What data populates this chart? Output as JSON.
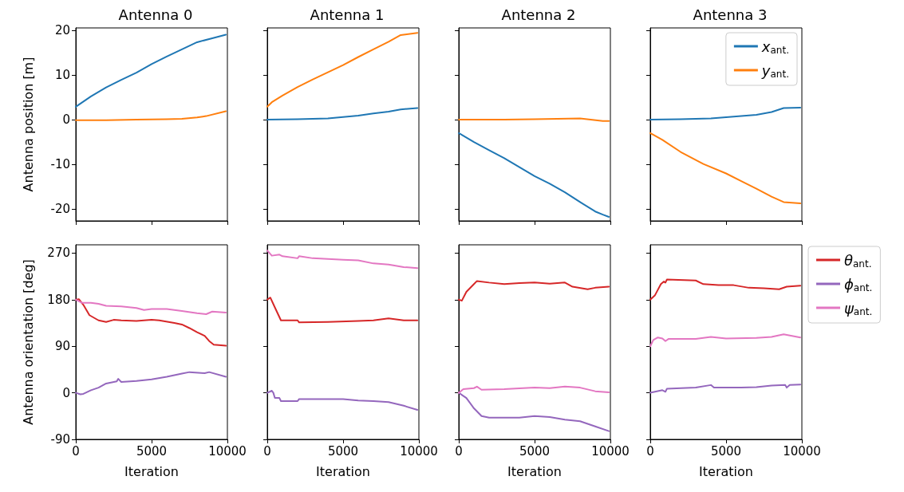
{
  "chart_data": [
    {
      "type": "line",
      "title": "Antenna 0",
      "ylabel": "Antenna position [m]",
      "xlim": [
        0,
        10000
      ],
      "xticks": [
        0,
        5000,
        10000
      ],
      "ylim": [
        -22.6,
        20.5
      ],
      "yticks": [
        -20,
        -10,
        0,
        10,
        20
      ],
      "tick_labels": "y",
      "series": [
        {
          "color": "#1f77b4",
          "x": [
            0,
            1000,
            2000,
            3000,
            4000,
            5000,
            6000,
            7000,
            8000,
            9000,
            9900
          ],
          "values": [
            2.9,
            5.2,
            7.2,
            8.9,
            10.5,
            12.4,
            14.1,
            15.7,
            17.3,
            18.2,
            19.0
          ]
        },
        {
          "color": "#ff7f0e",
          "x": [
            0,
            2000,
            4000,
            6000,
            7000,
            8000,
            8600,
            9900
          ],
          "values": [
            -0.1,
            -0.1,
            0,
            0.1,
            0.2,
            0.5,
            0.8,
            1.9
          ]
        }
      ]
    },
    {
      "type": "line",
      "title": "Antenna 1",
      "xlim": [
        0,
        10000
      ],
      "xticks": [
        0,
        5000,
        10000
      ],
      "ylim": [
        -22.6,
        20.5
      ],
      "yticks": [
        -20,
        -10,
        0,
        10,
        20
      ],
      "tick_labels": false,
      "series": [
        {
          "color": "#1f77b4",
          "x": [
            0,
            2000,
            4000,
            5000,
            6000,
            7000,
            8000,
            8800,
            9900
          ],
          "values": [
            0,
            0.1,
            0.3,
            0.6,
            0.9,
            1.4,
            1.8,
            2.3,
            2.6
          ]
        },
        {
          "color": "#ff7f0e",
          "x": [
            0,
            300,
            1000,
            2000,
            3000,
            4000,
            5000,
            6000,
            7000,
            8000,
            8800,
            9000,
            9900
          ],
          "values": [
            2.9,
            3.9,
            5.4,
            7.3,
            9.0,
            10.6,
            12.2,
            14.0,
            15.7,
            17.4,
            18.9,
            19.0,
            19.4
          ]
        }
      ]
    },
    {
      "type": "line",
      "title": "Antenna 2",
      "xlim": [
        0,
        10000
      ],
      "xticks": [
        0,
        5000,
        10000
      ],
      "ylim": [
        -22.6,
        20.5
      ],
      "yticks": [
        -20,
        -10,
        0,
        10,
        20
      ],
      "tick_labels": false,
      "series": [
        {
          "color": "#1f77b4",
          "x": [
            0,
            1000,
            2000,
            3000,
            4000,
            5000,
            6000,
            7000,
            8000,
            9000,
            9500,
            9900
          ],
          "values": [
            -3.0,
            -5.0,
            -6.8,
            -8.6,
            -10.6,
            -12.6,
            -14.3,
            -16.2,
            -18.4,
            -20.5,
            -21.2,
            -21.7
          ]
        },
        {
          "color": "#ff7f0e",
          "x": [
            0,
            3000,
            5000,
            8000,
            9500,
            9900
          ],
          "values": [
            0,
            0,
            0.1,
            0.3,
            -0.3,
            -0.3
          ]
        }
      ]
    },
    {
      "type": "line",
      "title": "Antenna 3",
      "xlim": [
        0,
        10000
      ],
      "xticks": [
        0,
        5000,
        10000
      ],
      "ylim": [
        -22.6,
        20.5
      ],
      "yticks": [
        -20,
        -10,
        0,
        10,
        20
      ],
      "tick_labels": false,
      "legend": "top right",
      "series": [
        {
          "name": "x$_{ant.}$",
          "color": "#1f77b4",
          "x": [
            0,
            2000,
            4000,
            6000,
            7000,
            8000,
            8800,
            9900
          ],
          "values": [
            0,
            0.1,
            0.3,
            0.8,
            1.1,
            1.7,
            2.6,
            2.7
          ]
        },
        {
          "name": "y$_{ant.}$",
          "color": "#ff7f0e",
          "x": [
            0,
            800,
            2000,
            3500,
            5000,
            6000,
            7000,
            8000,
            8800,
            9900
          ],
          "values": [
            -3.0,
            -4.5,
            -7.2,
            -9.9,
            -12.0,
            -13.7,
            -15.4,
            -17.2,
            -18.4,
            -18.7
          ]
        }
      ]
    },
    {
      "type": "line",
      "xlabel": "Iteration",
      "ylabel": "Antenna orientation [deg]",
      "xlim": [
        0,
        10000
      ],
      "xticks": [
        0,
        5000,
        10000
      ],
      "ylim": [
        -90,
        286
      ],
      "yticks": [
        -90,
        0,
        90,
        180,
        270
      ],
      "series": [
        {
          "color": "#d62728",
          "x": [
            0,
            200,
            500,
            900,
            1500,
            2000,
            2500,
            3000,
            4000,
            5000,
            5500,
            6500,
            7000,
            7500,
            8000,
            8500,
            8800,
            9100,
            9900
          ],
          "values": [
            180,
            181,
            170,
            150,
            140,
            137,
            141,
            140,
            139,
            141,
            140,
            135,
            132,
            125,
            117,
            110,
            100,
            93,
            91
          ]
        },
        {
          "color": "#9467bd",
          "x": [
            0,
            300,
            500,
            1000,
            1500,
            2000,
            2700,
            2800,
            3000,
            4000,
            5000,
            6000,
            7000,
            7500,
            8500,
            8800,
            9900
          ],
          "values": [
            0,
            -3,
            -2,
            5,
            10,
            18,
            22,
            27,
            21,
            23,
            26,
            31,
            37,
            40,
            38,
            40,
            31
          ]
        },
        {
          "color": "#e377c2",
          "x": [
            0,
            400,
            1000,
            1500,
            2000,
            3000,
            4000,
            4500,
            5000,
            6000,
            7000,
            8000,
            8600,
            9000,
            9900
          ],
          "values": [
            180,
            174,
            174,
            172,
            168,
            167,
            164,
            160,
            162,
            162,
            158,
            154,
            152,
            157,
            155
          ]
        }
      ]
    },
    {
      "type": "line",
      "xlabel": "Iteration",
      "xlim": [
        0,
        10000
      ],
      "xticks": [
        0,
        5000,
        10000
      ],
      "ylim": [
        -90,
        286
      ],
      "yticks": [
        -90,
        0,
        90,
        180,
        270
      ],
      "tick_labels": "x",
      "series": [
        {
          "color": "#d62728",
          "x": [
            0,
            200,
            500,
            900,
            1000,
            2000,
            2100,
            4000,
            6000,
            7000,
            8000,
            9000,
            9900
          ],
          "values": [
            180,
            184,
            165,
            140,
            140,
            140,
            136,
            137,
            139,
            140,
            144,
            140,
            140
          ]
        },
        {
          "color": "#9467bd",
          "x": [
            0,
            300,
            400,
            500,
            800,
            900,
            2000,
            2100,
            5000,
            6000,
            7000,
            8000,
            9000,
            9900
          ],
          "values": [
            0,
            4,
            0,
            -10,
            -10,
            -16,
            -16,
            -12,
            -12,
            -15,
            -16,
            -18,
            -25,
            -33
          ]
        },
        {
          "color": "#e377c2",
          "x": [
            0,
            300,
            800,
            1000,
            2000,
            2100,
            3000,
            5000,
            6000,
            7000,
            8000,
            9000,
            9900
          ],
          "values": [
            275,
            265,
            267,
            264,
            260,
            264,
            260,
            257,
            256,
            250,
            248,
            243,
            241
          ]
        }
      ]
    },
    {
      "type": "line",
      "xlabel": "Iteration",
      "xlim": [
        0,
        10000
      ],
      "xticks": [
        0,
        5000,
        10000
      ],
      "ylim": [
        -90,
        286
      ],
      "yticks": [
        -90,
        0,
        90,
        180,
        270
      ],
      "tick_labels": "x",
      "series": [
        {
          "color": "#d62728",
          "x": [
            0,
            200,
            500,
            1000,
            1200,
            2000,
            3000,
            4000,
            5000,
            6000,
            7000,
            7500,
            8500,
            9000,
            9900
          ],
          "values": [
            180,
            178,
            195,
            210,
            216,
            213,
            210,
            212,
            213,
            211,
            213,
            205,
            200,
            203,
            205
          ]
        },
        {
          "color": "#9467bd",
          "x": [
            0,
            500,
            1000,
            1500,
            2000,
            4000,
            5000,
            6000,
            7000,
            8000,
            9000,
            9900
          ],
          "values": [
            0,
            -10,
            -30,
            -45,
            -48,
            -48,
            -45,
            -47,
            -52,
            -55,
            -65,
            -74
          ]
        },
        {
          "color": "#e377c2",
          "x": [
            0,
            300,
            1000,
            1200,
            1500,
            3000,
            5000,
            6000,
            7000,
            8000,
            9000,
            9900
          ],
          "values": [
            0,
            7,
            9,
            12,
            6,
            7,
            10,
            9,
            12,
            10,
            3,
            1
          ]
        }
      ]
    },
    {
      "type": "line",
      "xlabel": "Iteration",
      "xlim": [
        0,
        10000
      ],
      "xticks": [
        0,
        5000,
        10000
      ],
      "ylim": [
        -90,
        286
      ],
      "yticks": [
        -90,
        0,
        90,
        180,
        270
      ],
      "tick_labels": "x",
      "legend": "right",
      "series": [
        {
          "name": "θ$_{ant.}$",
          "color": "#d62728",
          "x": [
            0,
            300,
            700,
            900,
            1000,
            1100,
            3000,
            3500,
            4500,
            5500,
            6500,
            7500,
            8500,
            9000,
            9900
          ],
          "values": [
            180,
            188,
            210,
            215,
            213,
            219,
            217,
            210,
            208,
            208,
            203,
            202,
            200,
            205,
            207
          ]
        },
        {
          "name": "ϕ$_{ant.}$",
          "color": "#9467bd",
          "x": [
            0,
            800,
            1000,
            1100,
            3000,
            4000,
            4200,
            6000,
            7000,
            8000,
            8900,
            9000,
            9200,
            9900
          ],
          "values": [
            0,
            5,
            2,
            8,
            10,
            15,
            10,
            10,
            11,
            14,
            15,
            10,
            15,
            16
          ]
        },
        {
          "name": "ψ$_{ant.}$",
          "color": "#e377c2",
          "x": [
            0,
            200,
            500,
            800,
            1000,
            1200,
            3000,
            4000,
            5000,
            7000,
            8000,
            8800,
            9900
          ],
          "values": [
            90,
            102,
            107,
            105,
            100,
            104,
            104,
            108,
            105,
            106,
            108,
            113,
            107
          ]
        }
      ]
    }
  ]
}
